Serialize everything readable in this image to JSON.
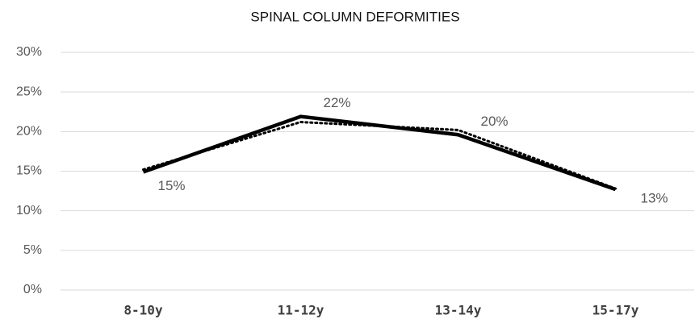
{
  "chart_data": {
    "type": "line",
    "title": "SPINAL COLUMN DEFORMITIES",
    "categories": [
      "8-10y",
      "11-12y",
      "13-14y",
      "15-17y"
    ],
    "series": [
      {
        "color": "#000000",
        "style": "solid",
        "values": [
          14.9,
          21.9,
          19.6,
          12.7
        ],
        "value_labels": [
          "15%",
          "22%",
          "20%",
          "13%"
        ]
      },
      {
        "color": "#000000",
        "style": "dotted",
        "values": [
          15.2,
          21.2,
          20.2,
          12.8
        ]
      }
    ],
    "ylim": [
      0,
      30
    ],
    "yticks": [
      {
        "value": 0,
        "label": "0%"
      },
      {
        "value": 5,
        "label": "5%"
      },
      {
        "value": 10,
        "label": "10%"
      },
      {
        "value": 15,
        "label": "15%"
      },
      {
        "value": 20,
        "label": "20%"
      },
      {
        "value": 25,
        "label": "25%"
      },
      {
        "value": 30,
        "label": "30%"
      }
    ],
    "grid": true
  }
}
